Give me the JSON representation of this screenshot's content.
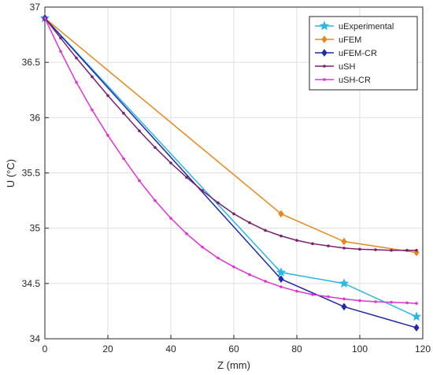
{
  "chart_data": {
    "type": "line",
    "title": "",
    "xlabel": "Z (mm)",
    "ylabel": "U (°C)",
    "xlim": [
      0,
      120
    ],
    "ylim": [
      34,
      37
    ],
    "xticks": [
      0,
      20,
      40,
      60,
      80,
      100,
      120
    ],
    "yticks": [
      34,
      34.5,
      35,
      35.5,
      36,
      36.5,
      37
    ],
    "xtick_labels": [
      "0",
      "20",
      "40",
      "60",
      "80",
      "100",
      "120"
    ],
    "ytick_labels": [
      "34",
      "34.5",
      "35",
      "35.5",
      "36",
      "36.5",
      "37"
    ],
    "grid": true,
    "legend_position": "top-right",
    "series": [
      {
        "name": "uExperimental",
        "color": "#29b6e8",
        "marker": "star",
        "x": [
          0,
          75,
          95,
          118
        ],
        "y": [
          36.9,
          34.6,
          34.5,
          34.2
        ]
      },
      {
        "name": "uFEM",
        "color": "#e8871e",
        "marker": "diamond",
        "x": [
          0,
          75,
          95,
          118
        ],
        "y": [
          36.9,
          35.13,
          34.88,
          34.78
        ]
      },
      {
        "name": "uFEM-CR",
        "color": "#1f2aa6",
        "marker": "diamond",
        "x": [
          0,
          75,
          95,
          118
        ],
        "y": [
          36.9,
          34.54,
          34.29,
          34.1
        ]
      },
      {
        "name": "uSH",
        "color": "#7b1f6e",
        "marker": "dot",
        "x": [
          0,
          5,
          10,
          15,
          20,
          25,
          30,
          35,
          40,
          45,
          50,
          55,
          60,
          65,
          70,
          75,
          80,
          85,
          90,
          95,
          100,
          105,
          110,
          115,
          118
        ],
        "y": [
          36.9,
          36.72,
          36.54,
          36.37,
          36.2,
          36.04,
          35.88,
          35.73,
          35.59,
          35.46,
          35.34,
          35.23,
          35.13,
          35.05,
          34.98,
          34.93,
          34.89,
          34.86,
          34.84,
          34.82,
          34.81,
          34.805,
          34.8,
          34.8,
          34.8
        ]
      },
      {
        "name": "uSH-CR",
        "color": "#e033d6",
        "marker": "dot",
        "x": [
          0,
          5,
          10,
          15,
          20,
          25,
          30,
          35,
          40,
          45,
          50,
          55,
          60,
          65,
          70,
          75,
          80,
          85,
          90,
          95,
          100,
          105,
          110,
          115,
          118
        ],
        "y": [
          36.9,
          36.6,
          36.32,
          36.07,
          35.84,
          35.63,
          35.43,
          35.25,
          35.09,
          34.95,
          34.83,
          34.73,
          34.65,
          34.58,
          34.52,
          34.47,
          34.43,
          34.4,
          34.38,
          34.36,
          34.345,
          34.335,
          34.33,
          34.325,
          34.32
        ]
      }
    ]
  }
}
